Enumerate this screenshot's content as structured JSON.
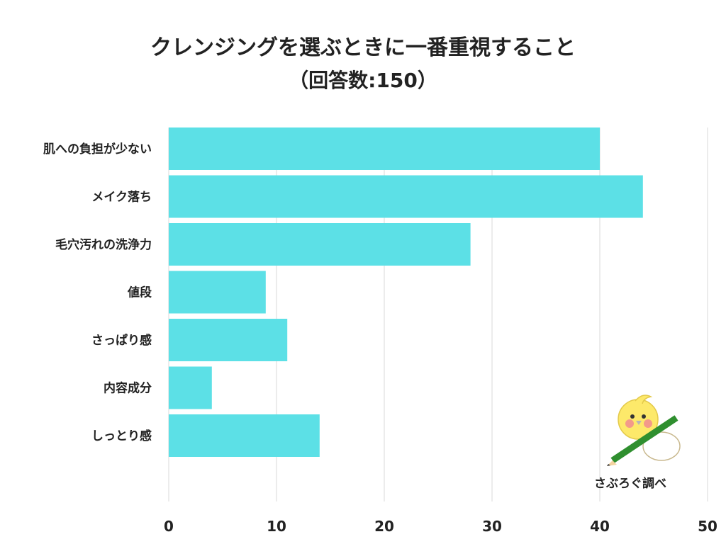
{
  "title": "クレンジングを選ぶときに一番重視すること",
  "subtitle": "（回答数:150）",
  "credit": "さぶろぐ調べ",
  "colors": {
    "bar": "#5ce0e6",
    "grid": "#d8d8d8",
    "text": "#222222"
  },
  "chart_data": {
    "type": "bar",
    "orientation": "horizontal",
    "title": "クレンジングを選ぶときに一番重視すること（回答数:150）",
    "categories": [
      "肌への負担が少ない",
      "メイク落ち",
      "毛穴汚れの洗浄力",
      "値段",
      "さっぱり感",
      "内容成分",
      "しっとり感"
    ],
    "values": [
      40,
      44,
      28,
      9,
      11,
      4,
      14
    ],
    "xlim": [
      0,
      50
    ],
    "xticks": [
      0,
      10,
      20,
      30,
      40,
      50
    ],
    "grid": true,
    "legend": "none"
  }
}
